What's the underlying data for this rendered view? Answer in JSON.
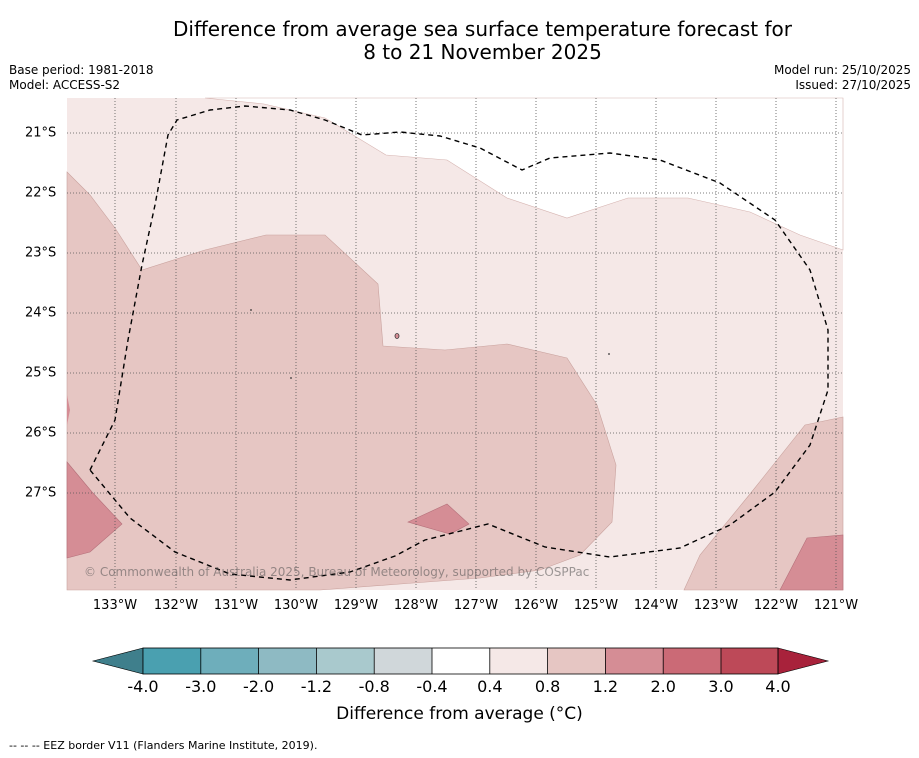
{
  "title_line1": "Difference from average sea surface temperature forecast for",
  "title_line2": "8 to 21 November 2025",
  "meta_left": {
    "base_period": "Base period: 1981-2018",
    "model": "Model: ACCESS-S2"
  },
  "meta_right": {
    "model_run": "Model run: 25/10/2025",
    "issued": "Issued: 27/10/2025"
  },
  "map": {
    "lat_labels": [
      "21°S",
      "22°S",
      "23°S",
      "24°S",
      "25°S",
      "26°S",
      "27°S"
    ],
    "lon_labels": [
      "133°W",
      "132°W",
      "131°W",
      "130°W",
      "129°W",
      "128°W",
      "127°W",
      "126°W",
      "125°W",
      "124°W",
      "123°W",
      "122°W",
      "121°W"
    ],
    "copyright": "© Commonwealth of Australia 2025, Bureau of Meteorology, supported by COSPPac",
    "anomaly_colors": {
      "band_0_4_0_8": "#f5e8e7",
      "band_0_8_1_2": "#e6c6c3",
      "band_1_2_2_0": "#d58d95"
    }
  },
  "colorbar": {
    "colors": [
      "#3f7f8c",
      "#4aa0b0",
      "#6eaebb",
      "#8ebac3",
      "#a9c9cd",
      "#d0d7da",
      "#ffffff",
      "#f5e8e7",
      "#e6c6c3",
      "#d58d95",
      "#cb6a76",
      "#bd4958",
      "#a8223b"
    ],
    "tick_labels": [
      "-4.0",
      "-3.0",
      "-2.0",
      "-1.2",
      "-0.8",
      "-0.4",
      "0.4",
      "0.8",
      "1.2",
      "2.0",
      "3.0",
      "4.0"
    ],
    "label": "Difference from average (°C)"
  },
  "footnote": "--  --  -- EEZ border V11 (Flanders Marine Institute, 2019)."
}
